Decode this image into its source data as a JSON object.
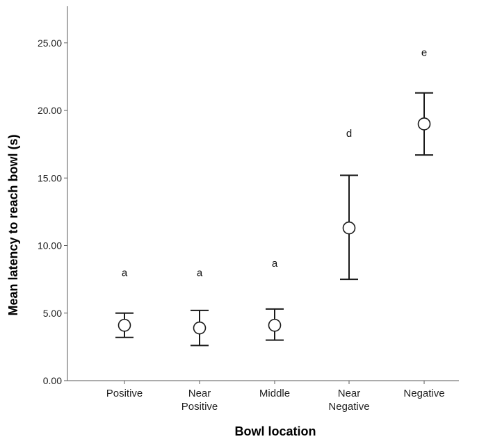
{
  "chart_data": {
    "type": "scatter",
    "title": "",
    "xlabel": "Bowl location",
    "ylabel": "Mean latency to reach bowl (s)",
    "ylim": [
      0,
      27.5
    ],
    "yticks": [
      0,
      5,
      10,
      15,
      20,
      25
    ],
    "ytick_labels": [
      "0.00",
      "5.00",
      "10.00",
      "15.00",
      "20.00",
      "25.00"
    ],
    "categories": [
      [
        "Positive"
      ],
      [
        "Near",
        "Positive"
      ],
      [
        "Middle"
      ],
      [
        "Near",
        "Negative"
      ],
      [
        "Negative"
      ]
    ],
    "means": [
      4.1,
      3.9,
      4.1,
      11.3,
      19.0
    ],
    "error_low": [
      3.2,
      2.6,
      3.0,
      7.5,
      16.7
    ],
    "error_high": [
      5.0,
      5.2,
      5.3,
      15.2,
      21.3
    ],
    "significance_letters": [
      "a",
      "a",
      "a",
      "d",
      "e"
    ],
    "significance_y": [
      8.0,
      8.0,
      8.7,
      18.3,
      24.3
    ],
    "grid": false,
    "legend": "none"
  }
}
